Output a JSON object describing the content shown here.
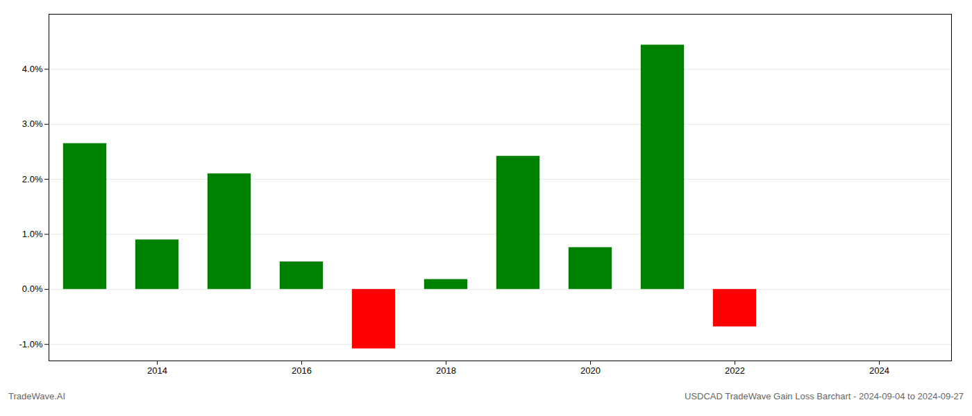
{
  "chart_data": {
    "type": "bar",
    "x": [
      2013,
      2014,
      2015,
      2016,
      2017,
      2018,
      2019,
      2020,
      2021,
      2022
    ],
    "values": [
      2.65,
      0.9,
      2.1,
      0.5,
      -1.08,
      0.18,
      2.42,
      0.76,
      4.44,
      -0.68
    ],
    "colors": [
      "#008000",
      "#008000",
      "#008000",
      "#008000",
      "#ff0000",
      "#008000",
      "#008000",
      "#008000",
      "#008000",
      "#ff0000"
    ],
    "xlim": [
      2012.5,
      2025.0
    ],
    "xticks": [
      2014,
      2016,
      2018,
      2020,
      2022,
      2024
    ],
    "ylim": [
      -1.3,
      5.0
    ],
    "yticks": [
      {
        "value": -1.0,
        "label": "-1.0%"
      },
      {
        "value": 0.0,
        "label": "0.0%"
      },
      {
        "value": 1.0,
        "label": "1.0%"
      },
      {
        "value": 2.0,
        "label": "2.0%"
      },
      {
        "value": 3.0,
        "label": "3.0%"
      },
      {
        "value": 4.0,
        "label": "4.0%"
      }
    ],
    "grid": true,
    "annotations": [
      "TradeWave.AI",
      "USDCAD TradeWave Gain Loss Barchart - 2024-09-04 to 2024-09-27"
    ]
  }
}
